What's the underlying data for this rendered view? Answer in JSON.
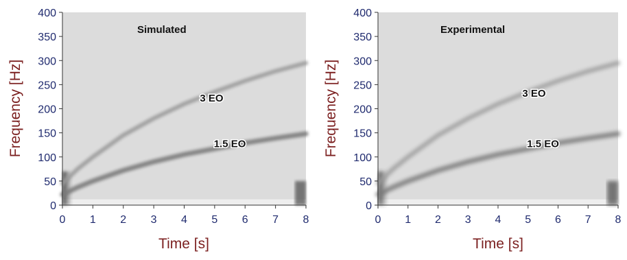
{
  "chart_data": [
    {
      "type": "heatmap",
      "title": "Simulated",
      "xlabel": "Time [s]",
      "ylabel": "Frequency [Hz]",
      "xlim": [
        0,
        8
      ],
      "ylim": [
        0,
        400
      ],
      "xticks": [
        0,
        1,
        2,
        3,
        4,
        5,
        6,
        7,
        8
      ],
      "yticks": [
        0,
        50,
        100,
        150,
        200,
        250,
        300,
        350,
        400
      ],
      "colormap": "grayscale",
      "grid": false,
      "series": [
        {
          "name": "3 EO",
          "x": [
            0,
            0.5,
            1,
            2,
            3,
            4,
            5,
            6,
            7,
            8
          ],
          "y": [
            45,
            75,
            100,
            145,
            180,
            210,
            235,
            258,
            278,
            295
          ]
        },
        {
          "name": "1.5 EO",
          "x": [
            0,
            0.5,
            1,
            2,
            3,
            4,
            5,
            6,
            7,
            8
          ],
          "y": [
            22,
            37,
            50,
            72,
            90,
            105,
            117,
            129,
            139,
            148
          ]
        }
      ],
      "annotations": [
        {
          "text": "3 EO",
          "x": 4.9,
          "y": 215
        },
        {
          "text": "1.5 EO",
          "x": 5.5,
          "y": 120
        }
      ]
    },
    {
      "type": "heatmap",
      "title": "Experimental",
      "xlabel": "Time [s]",
      "ylabel": "Frequency [Hz]",
      "xlim": [
        0,
        8
      ],
      "ylim": [
        0,
        400
      ],
      "xticks": [
        0,
        1,
        2,
        3,
        4,
        5,
        6,
        7,
        8
      ],
      "yticks": [
        0,
        50,
        100,
        150,
        200,
        250,
        300,
        350,
        400
      ],
      "colormap": "grayscale",
      "grid": false,
      "series": [
        {
          "name": "3 EO",
          "x": [
            0,
            0.5,
            1,
            2,
            3,
            4,
            5,
            6,
            7,
            8
          ],
          "y": [
            45,
            75,
            100,
            145,
            180,
            210,
            235,
            258,
            278,
            295
          ]
        },
        {
          "name": "1.5 EO",
          "x": [
            0,
            0.5,
            1,
            2,
            3,
            4,
            5,
            6,
            7,
            8
          ],
          "y": [
            22,
            37,
            50,
            72,
            90,
            105,
            117,
            129,
            139,
            148
          ]
        }
      ],
      "annotations": [
        {
          "text": "3 EO",
          "x": 5.2,
          "y": 225
        },
        {
          "text": "1.5 EO",
          "x": 5.5,
          "y": 120
        }
      ]
    }
  ]
}
